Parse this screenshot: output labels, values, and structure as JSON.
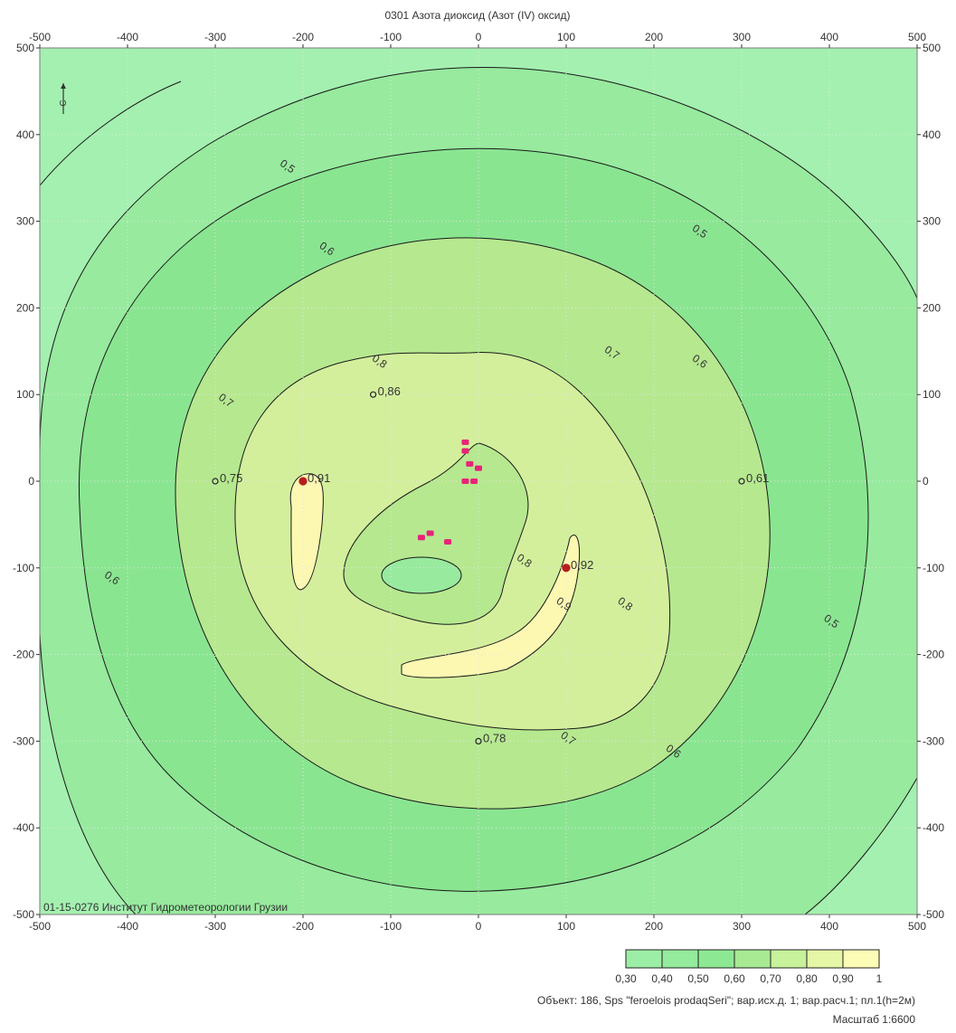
{
  "chart_data": {
    "type": "contour",
    "title": "0301 Азота диоксид (Азот (IV) оксид)",
    "x_ticks": [
      -500,
      -400,
      -300,
      -200,
      -100,
      0,
      100,
      200,
      300,
      400,
      500
    ],
    "y_ticks": [
      500,
      400,
      300,
      200,
      100,
      0,
      -100,
      -200,
      -300,
      -400,
      -500
    ],
    "xlim": [
      -500,
      500
    ],
    "ylim": [
      -500,
      500
    ],
    "grid": true,
    "contour_levels": [
      0.5,
      0.6,
      0.7,
      0.8,
      0.9
    ],
    "contour_labels": [
      {
        "text": "0,5",
        "x": -220,
        "y": 360
      },
      {
        "text": "0,6",
        "x": -175,
        "y": 265
      },
      {
        "text": "0,7",
        "x": -290,
        "y": 90
      },
      {
        "text": "0,8",
        "x": -115,
        "y": 135
      },
      {
        "text": "0,5",
        "x": 250,
        "y": 285
      },
      {
        "text": "0,7",
        "x": 150,
        "y": 145
      },
      {
        "text": "0,6",
        "x": 250,
        "y": 135
      },
      {
        "text": "0,6",
        "x": -420,
        "y": -115
      },
      {
        "text": "0,8",
        "x": 50,
        "y": -95
      },
      {
        "text": "0,9",
        "x": 95,
        "y": -145
      },
      {
        "text": "0,8",
        "x": 165,
        "y": -145
      },
      {
        "text": "0,5",
        "x": 400,
        "y": -165
      },
      {
        "text": "0,7",
        "x": 100,
        "y": -300
      },
      {
        "text": "0,6",
        "x": 220,
        "y": -315
      }
    ],
    "point_labels": [
      {
        "text": "0,86",
        "x": -120,
        "y": 100
      },
      {
        "text": "0,75",
        "x": -300,
        "y": 0
      },
      {
        "text": "0,91",
        "x": -200,
        "y": 0
      },
      {
        "text": "0,61",
        "x": 300,
        "y": 0
      },
      {
        "text": "0,92",
        "x": 100,
        "y": -100
      },
      {
        "text": "0,78",
        "x": 0,
        "y": -300
      }
    ],
    "sources": [
      {
        "x": -15,
        "y": 45
      },
      {
        "x": -15,
        "y": 35
      },
      {
        "x": -10,
        "y": 20
      },
      {
        "x": 0,
        "y": 15
      },
      {
        "x": -15,
        "y": 0
      },
      {
        "x": -5,
        "y": 0
      },
      {
        "x": -65,
        "y": -65
      },
      {
        "x": -55,
        "y": -60
      },
      {
        "x": -35,
        "y": -70
      }
    ],
    "legend": {
      "labels": [
        "0,30",
        "0,40",
        "0,50",
        "0,60",
        "0,70",
        "0,80",
        "0,90",
        "1"
      ],
      "colors": [
        "#a4f0b0",
        "#9ceea6",
        "#94eb9c",
        "#8de893",
        "#a8ea93",
        "#c8f19b",
        "#e5f6a6",
        "#fdfcb6"
      ]
    },
    "colors": {
      "outer": "#a4f0b0",
      "band_05": "#97ea9e",
      "band_06": "#8ae591",
      "band_07": "#b6e88f",
      "band_08": "#d3ef9c",
      "band_09": "#fcf8b2",
      "source": "#e8237a",
      "point_red": "#b81d1d"
    }
  },
  "watermark": "01-15-0276 Институт Гидрометеорологии Грузии",
  "compass_label": "С",
  "footer": {
    "object_line": "Объект: 186, Sps \"feroelois prodaqSeri\"; вар.исх.д. 1; вар.расч.1; пл.1(h=2м)",
    "scale_line": "Масштаб 1:6600"
  }
}
